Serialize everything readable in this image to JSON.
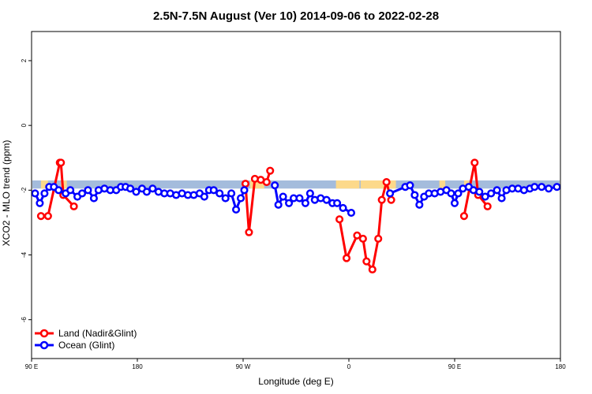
{
  "chart_data": {
    "type": "line",
    "title": "2.5N-7.5N August (Ver 10)   2014-09-06 to 2022-02-28",
    "xlabel": "Longitude (deg E)",
    "ylabel": "XCO2 - MLO trend (ppm)",
    "xlim": [
      90,
      540
    ],
    "ylim": [
      -7.2,
      2.9
    ],
    "x_ticks": [
      {
        "value": 90,
        "label": "90 E"
      },
      {
        "value": 180,
        "label": "180"
      },
      {
        "value": 270,
        "label": "90 W"
      },
      {
        "value": 360,
        "label": "0"
      },
      {
        "value": 450,
        "label": "90 E"
      },
      {
        "value": 540,
        "label": "180"
      }
    ],
    "y_ticks": [
      {
        "value": 2,
        "label": "2"
      },
      {
        "value": 0,
        "label": "0"
      },
      {
        "value": -2,
        "label": "-2"
      },
      {
        "value": -4,
        "label": "-4"
      },
      {
        "value": -6,
        "label": "-6"
      }
    ],
    "legend_position": "bottom-left",
    "band": {
      "y_min": -1.95,
      "y_max": -1.7,
      "ocean_color": "#a4bcdc",
      "land_color": "#fcd98a"
    },
    "land_segments": [
      [
        98,
        104
      ],
      [
        115,
        120
      ],
      [
        276,
        288
      ],
      [
        349,
        369
      ],
      [
        370,
        400
      ],
      [
        437,
        442
      ],
      [
        458,
        462
      ]
    ],
    "series": [
      {
        "name": "Land (Nadir&Glint)",
        "color": "#ff0000",
        "points": [
          [
            98,
            -2.8
          ],
          [
            115,
            -1.15
          ],
          [
            117,
            -2.15
          ],
          [
            126,
            -2.5
          ],
          [
            104,
            -2.8
          ],
          [
            114,
            -1.15
          ],
          [
            272,
            -1.8
          ],
          [
            275,
            -3.3
          ],
          [
            280,
            -1.65
          ],
          [
            285,
            -1.68
          ],
          [
            290,
            -1.75
          ],
          [
            293,
            -1.4
          ],
          [
            352,
            -2.9
          ],
          [
            358,
            -4.1
          ],
          [
            367,
            -3.4
          ],
          [
            372,
            -3.5
          ],
          [
            375,
            -4.2
          ],
          [
            380,
            -4.45
          ],
          [
            385,
            -3.5
          ],
          [
            388,
            -2.3
          ],
          [
            392,
            -1.75
          ],
          [
            396,
            -2.3
          ],
          [
            458,
            -2.8
          ],
          [
            467,
            -1.15
          ],
          [
            470,
            -2.15
          ],
          [
            478,
            -2.5
          ]
        ]
      },
      {
        "name": "Ocean (Glint)",
        "color": "#0000ff",
        "points": [
          [
            93,
            -2.1
          ],
          [
            97,
            -2.4
          ],
          [
            101,
            -2.1
          ],
          [
            105,
            -1.9
          ],
          [
            109,
            -1.9
          ],
          [
            113,
            -2.0
          ],
          [
            119,
            -2.1
          ],
          [
            123,
            -2.0
          ],
          [
            129,
            -2.2
          ],
          [
            133,
            -2.1
          ],
          [
            138,
            -2.0
          ],
          [
            143,
            -2.25
          ],
          [
            147,
            -2.0
          ],
          [
            152,
            -1.95
          ],
          [
            157,
            -2.0
          ],
          [
            162,
            -2.0
          ],
          [
            166,
            -1.9
          ],
          [
            170,
            -1.9
          ],
          [
            174,
            -1.95
          ],
          [
            179,
            -2.05
          ],
          [
            184,
            -1.95
          ],
          [
            188,
            -2.05
          ],
          [
            193,
            -1.95
          ],
          [
            198,
            -2.05
          ],
          [
            203,
            -2.1
          ],
          [
            208,
            -2.1
          ],
          [
            213,
            -2.15
          ],
          [
            218,
            -2.1
          ],
          [
            223,
            -2.15
          ],
          [
            228,
            -2.15
          ],
          [
            233,
            -2.1
          ],
          [
            237,
            -2.2
          ],
          [
            241,
            -2.0
          ],
          [
            245,
            -2.0
          ],
          [
            250,
            -2.1
          ],
          [
            255,
            -2.25
          ],
          [
            260,
            -2.1
          ],
          [
            264,
            -2.6
          ],
          [
            268,
            -2.25
          ],
          [
            271,
            -2.0
          ],
          [
            297,
            -1.85
          ],
          [
            300,
            -2.45
          ],
          [
            304,
            -2.2
          ],
          [
            309,
            -2.4
          ],
          [
            313,
            -2.25
          ],
          [
            318,
            -2.25
          ],
          [
            323,
            -2.4
          ],
          [
            327,
            -2.1
          ],
          [
            331,
            -2.3
          ],
          [
            336,
            -2.25
          ],
          [
            341,
            -2.3
          ],
          [
            346,
            -2.4
          ],
          [
            350,
            -2.4
          ],
          [
            355,
            -2.55
          ],
          [
            362,
            -2.7
          ],
          [
            395,
            -2.1
          ],
          [
            408,
            -1.9
          ],
          [
            412,
            -1.85
          ],
          [
            416,
            -2.15
          ],
          [
            420,
            -2.45
          ],
          [
            424,
            -2.2
          ],
          [
            428,
            -2.1
          ],
          [
            433,
            -2.1
          ],
          [
            438,
            -2.05
          ],
          [
            443,
            -2.0
          ],
          [
            447,
            -2.1
          ],
          [
            450,
            -2.4
          ],
          [
            453,
            -2.1
          ],
          [
            457,
            -1.95
          ],
          [
            462,
            -1.9
          ],
          [
            466,
            -2.0
          ],
          [
            471,
            -2.05
          ],
          [
            476,
            -2.2
          ],
          [
            481,
            -2.1
          ],
          [
            486,
            -2.0
          ],
          [
            490,
            -2.25
          ],
          [
            494,
            -2.0
          ],
          [
            499,
            -1.95
          ],
          [
            504,
            -1.95
          ],
          [
            509,
            -2.0
          ],
          [
            514,
            -1.95
          ],
          [
            518,
            -1.9
          ],
          [
            524,
            -1.9
          ],
          [
            530,
            -1.95
          ],
          [
            537,
            -1.9
          ]
        ]
      }
    ]
  }
}
